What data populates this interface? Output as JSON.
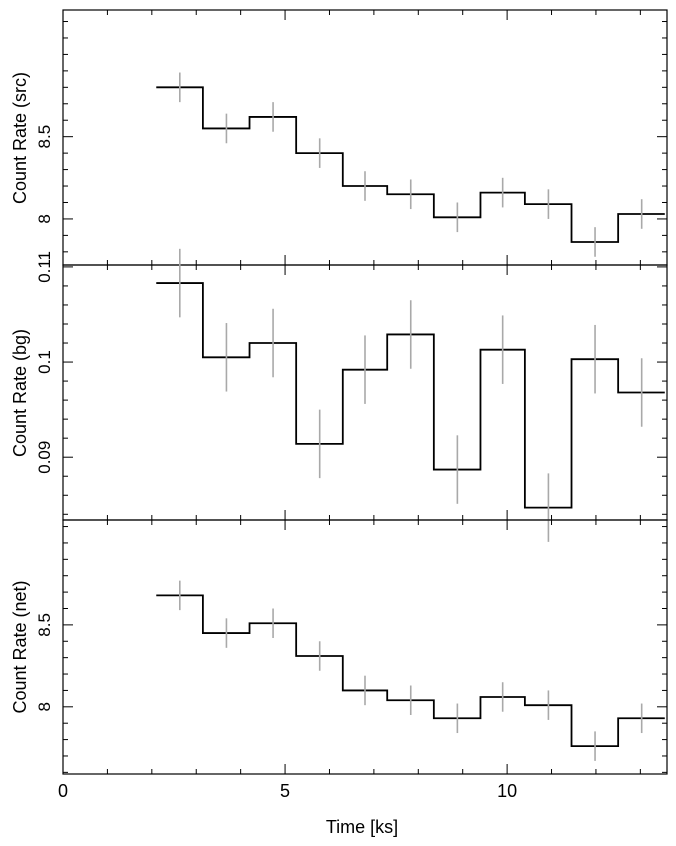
{
  "chart_data": [
    {
      "type": "line",
      "style": "step-histogram-with-error-bars",
      "ylabel": "Count Rate (src)",
      "ylim": [
        7.72,
        9.27
      ],
      "yticks_major": [
        8,
        8.5
      ],
      "yticks_minor_step": 0.1,
      "x_bin_edges": [
        2.1,
        3.15,
        4.2,
        5.25,
        6.3,
        7.3,
        8.35,
        9.4,
        10.4,
        11.45,
        12.5,
        13.55
      ],
      "x_centers": [
        2.63,
        3.68,
        4.73,
        5.78,
        6.8,
        7.83,
        8.88,
        9.9,
        10.93,
        11.98,
        13.03
      ],
      "values": [
        8.8,
        8.55,
        8.62,
        8.4,
        8.2,
        8.15,
        8.01,
        8.16,
        8.09,
        7.86,
        8.03
      ],
      "errors": [
        0.09,
        0.09,
        0.09,
        0.09,
        0.09,
        0.09,
        0.09,
        0.09,
        0.09,
        0.09,
        0.09
      ],
      "grid": false
    },
    {
      "type": "line",
      "style": "step-histogram-with-error-bars",
      "ylabel": "Count Rate (bg)",
      "ylim": [
        0.0834,
        0.1102
      ],
      "yticks_major": [
        0.09,
        0.1,
        0.11
      ],
      "yticks_minor_step": 0.002,
      "x_bin_edges": [
        2.1,
        3.15,
        4.2,
        5.25,
        6.3,
        7.3,
        8.35,
        9.4,
        10.4,
        11.45,
        12.5,
        13.55
      ],
      "x_centers": [
        2.63,
        3.68,
        4.73,
        5.78,
        6.8,
        7.83,
        8.88,
        9.9,
        10.93,
        11.98,
        13.03
      ],
      "values": [
        0.1083,
        0.1005,
        0.102,
        0.0914,
        0.0992,
        0.1029,
        0.0887,
        0.1013,
        0.0847,
        0.1003,
        0.0968
      ],
      "errors": [
        0.0036,
        0.0036,
        0.0036,
        0.0036,
        0.0036,
        0.0036,
        0.0036,
        0.0036,
        0.0036,
        0.0036,
        0.0036
      ],
      "grid": false
    },
    {
      "type": "line",
      "style": "step-histogram-with-error-bars",
      "ylabel": "Count Rate (net)",
      "ylim": [
        7.59,
        9.14
      ],
      "yticks_major": [
        8,
        8.5
      ],
      "yticks_minor_step": 0.1,
      "x_bin_edges": [
        2.1,
        3.15,
        4.2,
        5.25,
        6.3,
        7.3,
        8.35,
        9.4,
        10.4,
        11.45,
        12.5,
        13.55
      ],
      "x_centers": [
        2.63,
        3.68,
        4.73,
        5.78,
        6.8,
        7.83,
        8.88,
        9.9,
        10.93,
        11.98,
        13.03
      ],
      "values": [
        8.68,
        8.45,
        8.51,
        8.31,
        8.1,
        8.04,
        7.93,
        8.06,
        8.01,
        7.76,
        7.93
      ],
      "errors": [
        0.09,
        0.09,
        0.09,
        0.09,
        0.09,
        0.09,
        0.09,
        0.09,
        0.09,
        0.09,
        0.09
      ],
      "grid": false
    }
  ],
  "x_axis": {
    "label": "Time [ks]",
    "xlim": [
      0,
      13.6
    ],
    "xticks_major": [
      0,
      5,
      10
    ],
    "xtick_labels": [
      "0",
      "5",
      "10"
    ],
    "xticks_minor_step": 1
  },
  "colors": {
    "step_line": "#000000",
    "error_bar": "#a9a9a9",
    "axes": "#000000",
    "background": "#ffffff"
  }
}
